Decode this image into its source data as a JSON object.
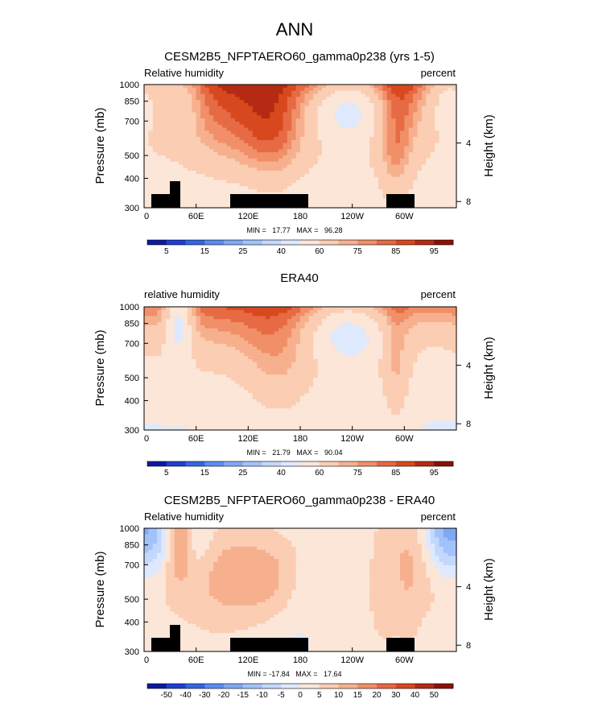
{
  "page_title": "ANN",
  "axes_common": {
    "ylabel_left": "Pressure (mb)",
    "ylabel_right": "Height (km)",
    "pressure_ticks": [
      "300",
      "400",
      "500",
      "700",
      "850",
      "1000"
    ],
    "height_ticks": [
      "8",
      "4"
    ],
    "lon_ticks": [
      "0",
      "60E",
      "120E",
      "180",
      "120W",
      "60W"
    ]
  },
  "chart_data": [
    {
      "type": "heatmap",
      "id": "model",
      "title": "CESM2B5_NFPTAERO60_gamma0p238 (yrs 1-5)",
      "left_label": "Relative humidity",
      "right_label": "percent",
      "min_max": "MIN =   17.77   MAX =   96.28",
      "colorbar_labels": [
        "5",
        "15",
        "25",
        "40",
        "60",
        "75",
        "85",
        "95"
      ],
      "colorbar_colors": [
        "#0d1a9e",
        "#1f3fd1",
        "#3366e0",
        "#5a8cf0",
        "#7fa8f5",
        "#a2c2fa",
        "#c3d8fc",
        "#dfe9fd",
        "#fbe6d8",
        "#fbcdb3",
        "#f7b08e",
        "#f08f68",
        "#e66a44",
        "#d8481f",
        "#b52a12",
        "#8a1208"
      ],
      "cb_vals": [
        5,
        10,
        15,
        20,
        25,
        30,
        40,
        50,
        60,
        70,
        75,
        80,
        85,
        90,
        95
      ],
      "min": 17.77,
      "max": 96.28,
      "xlim": [
        0,
        360
      ],
      "ylim_pressure": [
        1000,
        300
      ]
    },
    {
      "type": "heatmap",
      "id": "obs",
      "title": "ERA40",
      "left_label": "relative humidity",
      "right_label": "percent",
      "min_max": "MIN =   21.79   MAX =   90.04",
      "colorbar_labels": [
        "5",
        "15",
        "25",
        "40",
        "60",
        "75",
        "85",
        "95"
      ],
      "colorbar_colors": [
        "#0d1a9e",
        "#1f3fd1",
        "#3366e0",
        "#5a8cf0",
        "#7fa8f5",
        "#a2c2fa",
        "#c3d8fc",
        "#dfe9fd",
        "#fbe6d8",
        "#fbcdb3",
        "#f7b08e",
        "#f08f68",
        "#e66a44",
        "#d8481f",
        "#b52a12",
        "#8a1208"
      ],
      "cb_vals": [
        5,
        10,
        15,
        20,
        25,
        30,
        40,
        50,
        60,
        70,
        75,
        80,
        85,
        90,
        95
      ],
      "min": 21.79,
      "max": 90.04,
      "xlim": [
        0,
        360
      ],
      "ylim_pressure": [
        1000,
        300
      ]
    },
    {
      "type": "heatmap",
      "id": "diff",
      "title": "CESM2B5_NFPTAERO60_gamma0p238 - ERA40",
      "left_label": "Relative humidity",
      "right_label": "percent",
      "min_max": "MIN = -17.84   MAX =   17.64",
      "colorbar_labels": [
        "-50",
        "-40",
        "-30",
        "-20",
        "-15",
        "-10",
        "-5",
        "0",
        "5",
        "10",
        "15",
        "20",
        "30",
        "40",
        "50"
      ],
      "colorbar_colors": [
        "#0d1a9e",
        "#1f3fd1",
        "#3366e0",
        "#5a8cf0",
        "#7fa8f5",
        "#a2c2fa",
        "#c3d8fc",
        "#dfe9fd",
        "#fbe6d8",
        "#fbcdb3",
        "#f7b08e",
        "#f08f68",
        "#e66a44",
        "#d8481f",
        "#b52a12",
        "#8a1208"
      ],
      "cb_vals": [
        -50,
        -40,
        -30,
        -20,
        -15,
        -10,
        -5,
        0,
        5,
        10,
        15,
        20,
        30,
        40,
        50
      ],
      "min": -17.84,
      "max": 17.64,
      "xlim": [
        0,
        360
      ],
      "ylim_pressure": [
        1000,
        300
      ]
    }
  ]
}
